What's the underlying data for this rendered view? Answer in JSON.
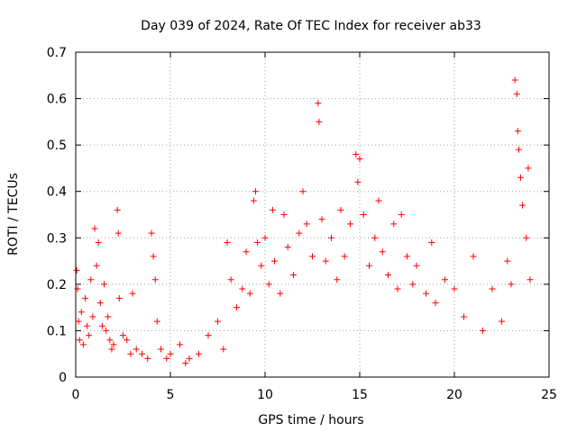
{
  "chart_data": {
    "type": "scatter",
    "title": "Day 039 of 2024, Rate Of TEC Index for receiver ab33",
    "xlabel": "GPS time / hours",
    "ylabel": "ROTI / TECUs",
    "xlim": [
      0,
      25
    ],
    "ylim": [
      0,
      0.7
    ],
    "xticks": [
      "0",
      "5",
      "10",
      "15",
      "20",
      "25"
    ],
    "yticks": [
      "0",
      "0.1",
      "0.2",
      "0.3",
      "0.4",
      "0.5",
      "0.6",
      "0.7"
    ],
    "grid": true,
    "marker": "plus",
    "color": "#ff0000",
    "series": [
      {
        "x": [
          0.05,
          0.1,
          0.15,
          0.2,
          0.3,
          0.4,
          0.5,
          0.6,
          0.7,
          0.8,
          0.9,
          1.0,
          1.1,
          1.2,
          1.3,
          1.4,
          1.5,
          1.6,
          1.7,
          1.8,
          1.9,
          2.0,
          2.2,
          2.25,
          2.3,
          2.5,
          2.7,
          2.9,
          3.0,
          3.2,
          3.5,
          3.8,
          4.0,
          4.1,
          4.2,
          4.3,
          4.5,
          4.8,
          5.0,
          5.5,
          5.8,
          6.0,
          6.5,
          7.0,
          7.5,
          7.8,
          8.0,
          8.2,
          8.5,
          8.8,
          9.0,
          9.2,
          9.4,
          9.5,
          9.6,
          9.8,
          10.0,
          10.2,
          10.4,
          10.5,
          10.8,
          11.0,
          11.2,
          11.5,
          11.8,
          12.0,
          12.2,
          12.5,
          12.8,
          12.85,
          13.0,
          13.2,
          13.5,
          13.8,
          14.0,
          14.2,
          14.5,
          14.8,
          14.9,
          15.0,
          15.2,
          15.5,
          15.8,
          16.0,
          16.2,
          16.5,
          16.8,
          17.0,
          17.2,
          17.5,
          17.8,
          18.0,
          18.5,
          18.8,
          19.0,
          19.5,
          20.0,
          20.5,
          21.0,
          21.5,
          22.0,
          22.5,
          22.8,
          23.0,
          23.2,
          23.3,
          23.35,
          23.4,
          23.5,
          23.6,
          23.8,
          23.9,
          24.0
        ],
        "y": [
          0.23,
          0.19,
          0.12,
          0.08,
          0.14,
          0.07,
          0.17,
          0.11,
          0.09,
          0.21,
          0.13,
          0.32,
          0.24,
          0.29,
          0.16,
          0.11,
          0.2,
          0.1,
          0.13,
          0.08,
          0.06,
          0.07,
          0.36,
          0.31,
          0.17,
          0.09,
          0.08,
          0.05,
          0.18,
          0.06,
          0.05,
          0.04,
          0.31,
          0.26,
          0.21,
          0.12,
          0.06,
          0.04,
          0.05,
          0.07,
          0.03,
          0.04,
          0.05,
          0.09,
          0.12,
          0.06,
          0.29,
          0.21,
          0.15,
          0.19,
          0.27,
          0.18,
          0.38,
          0.4,
          0.29,
          0.24,
          0.3,
          0.2,
          0.36,
          0.25,
          0.18,
          0.35,
          0.28,
          0.22,
          0.31,
          0.4,
          0.33,
          0.26,
          0.59,
          0.55,
          0.34,
          0.25,
          0.3,
          0.21,
          0.36,
          0.26,
          0.33,
          0.48,
          0.42,
          0.47,
          0.35,
          0.24,
          0.3,
          0.38,
          0.27,
          0.22,
          0.33,
          0.19,
          0.35,
          0.26,
          0.2,
          0.24,
          0.18,
          0.29,
          0.16,
          0.21,
          0.19,
          0.13,
          0.26,
          0.1,
          0.19,
          0.12,
          0.25,
          0.2,
          0.64,
          0.61,
          0.53,
          0.49,
          0.43,
          0.37,
          0.3,
          0.45,
          0.21
        ]
      }
    ]
  }
}
